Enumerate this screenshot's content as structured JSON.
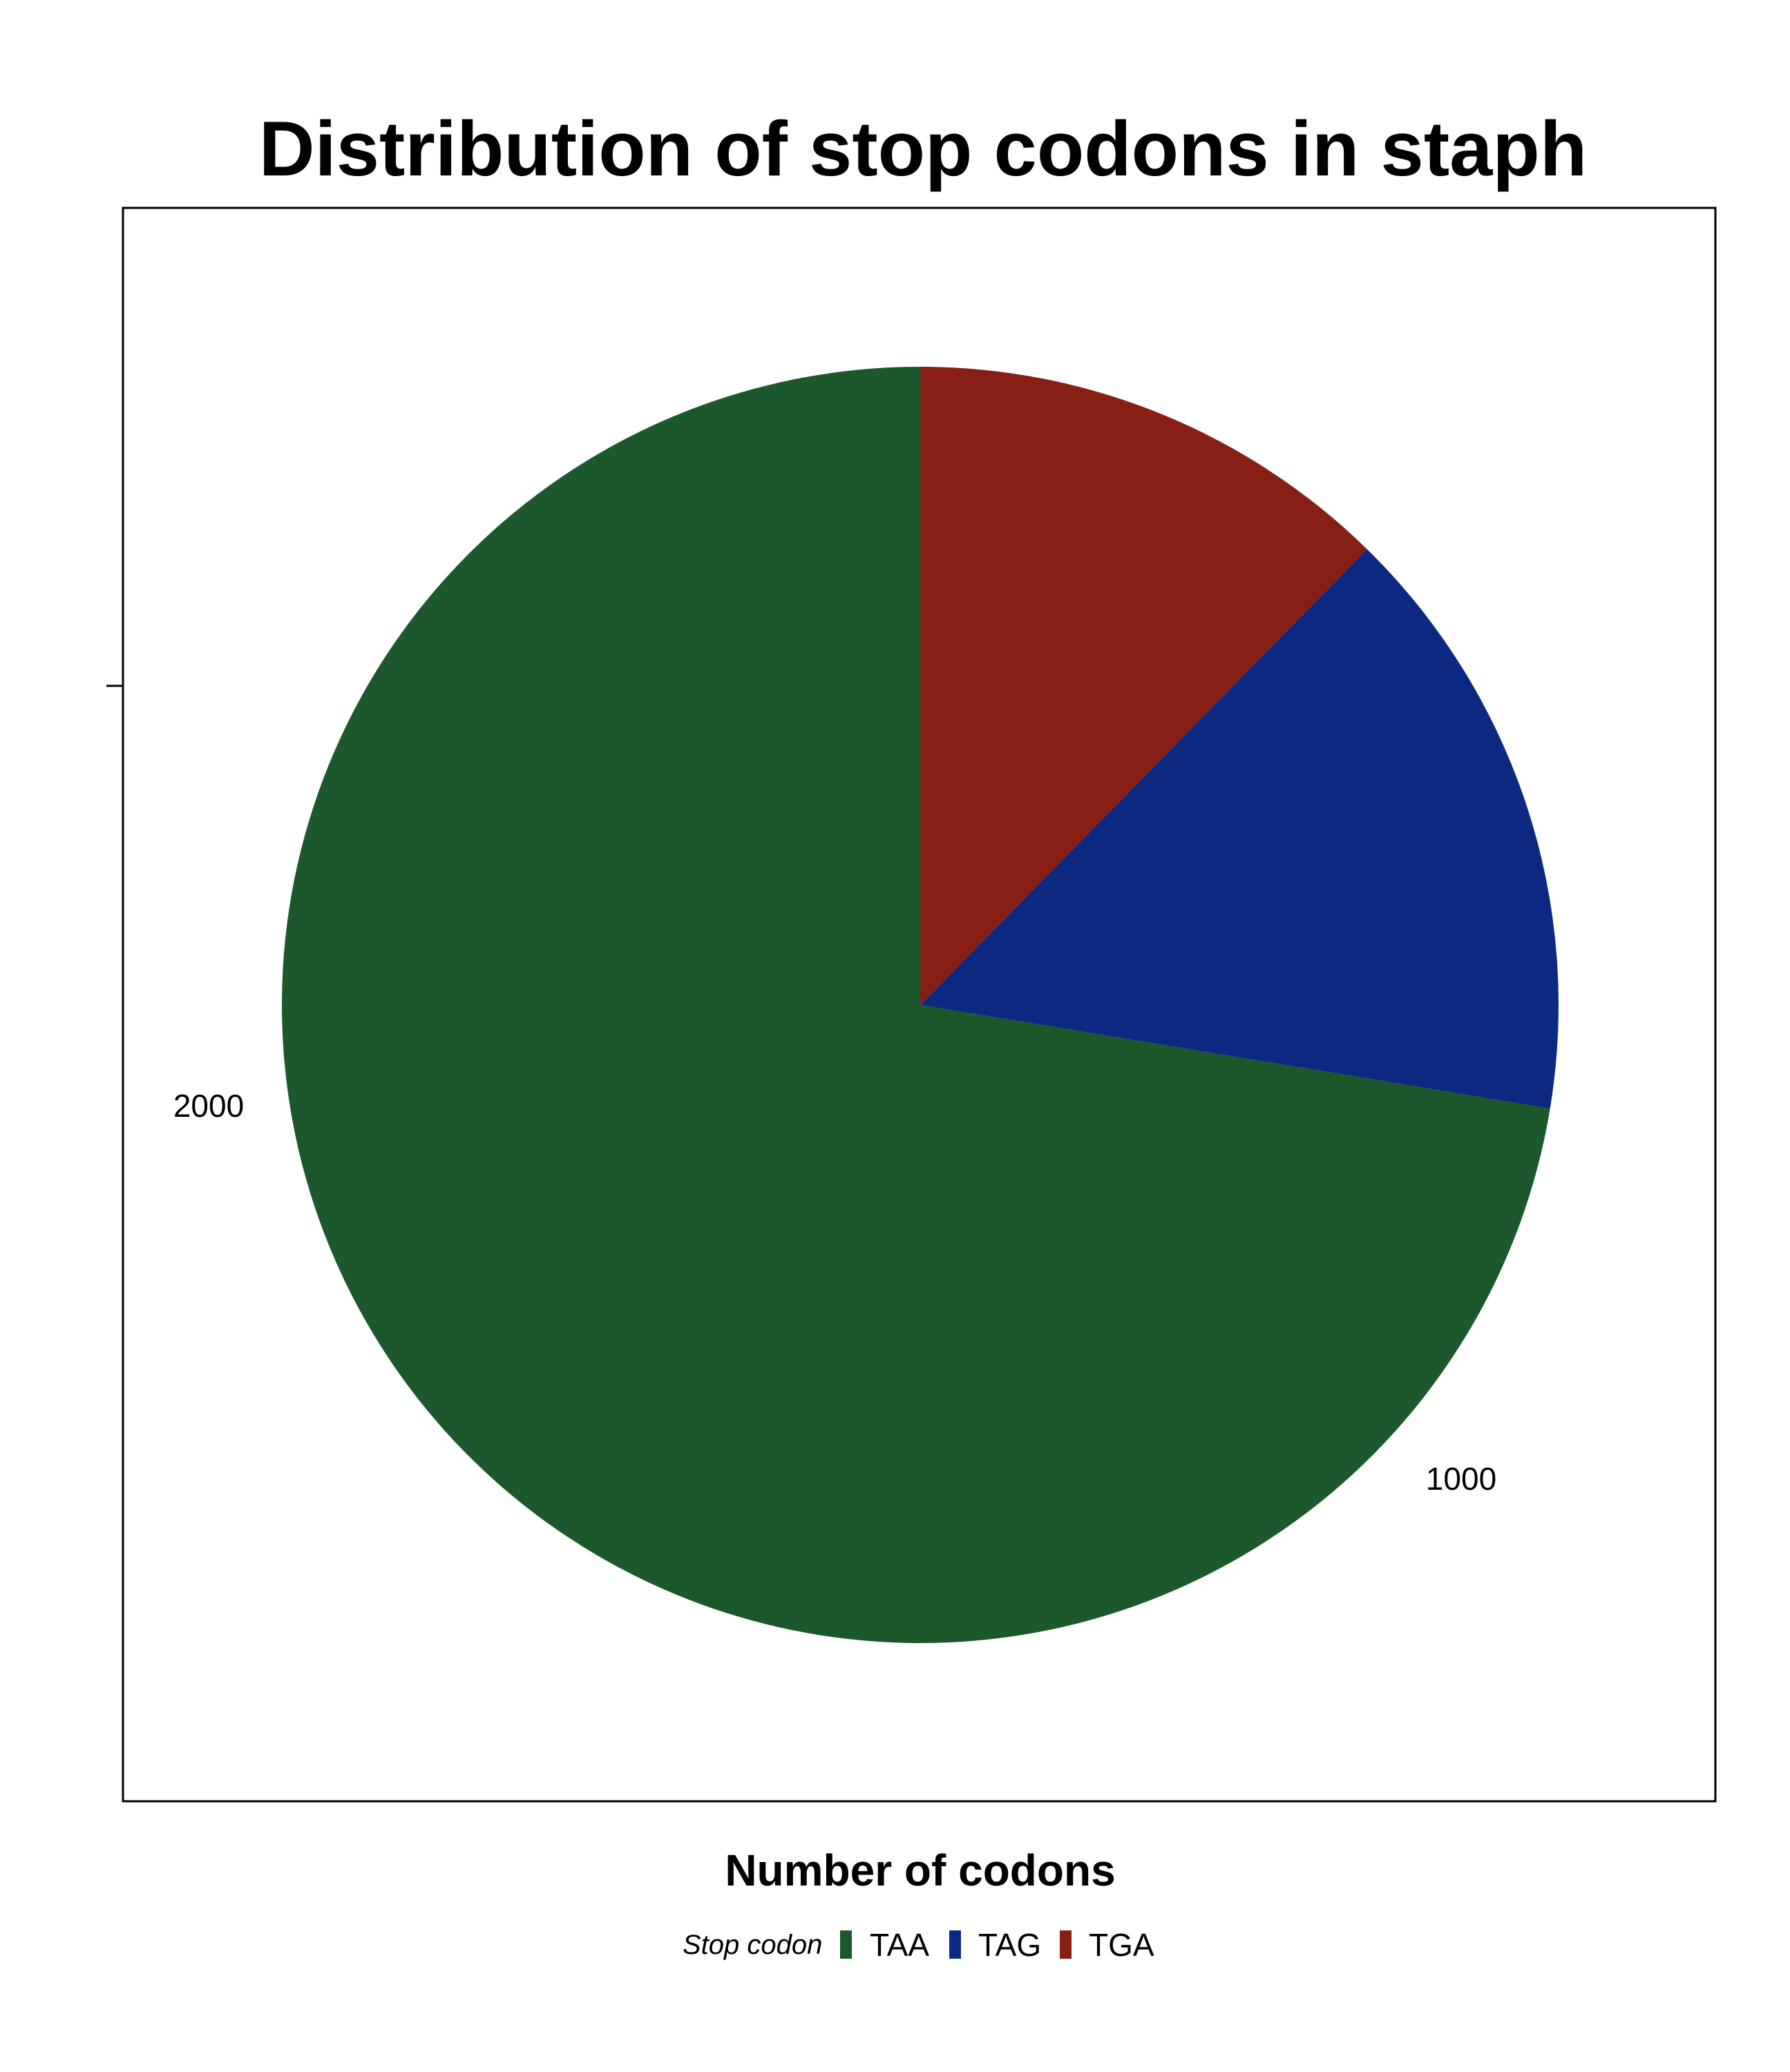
{
  "chart_data": {
    "type": "pie",
    "title": "Distribution of stop codons in staph",
    "xlabel": "Number of codons",
    "ylabel": "",
    "legend": {
      "title": "Stop codon",
      "placement": "bottom"
    },
    "radial_tick_labels": [
      "2000",
      "1000"
    ],
    "radial_ticks": [
      2000,
      1000
    ],
    "slices": [
      {
        "label": "TAA",
        "value": 2230,
        "color": "#1b582b"
      },
      {
        "label": "TAG",
        "value": 470,
        "color": "#0c2982"
      },
      {
        "label": "TGA",
        "value": 380,
        "color": "#871f14"
      }
    ],
    "start_angle": "12 o'clock",
    "direction": "counterclockwise",
    "grid": false
  }
}
